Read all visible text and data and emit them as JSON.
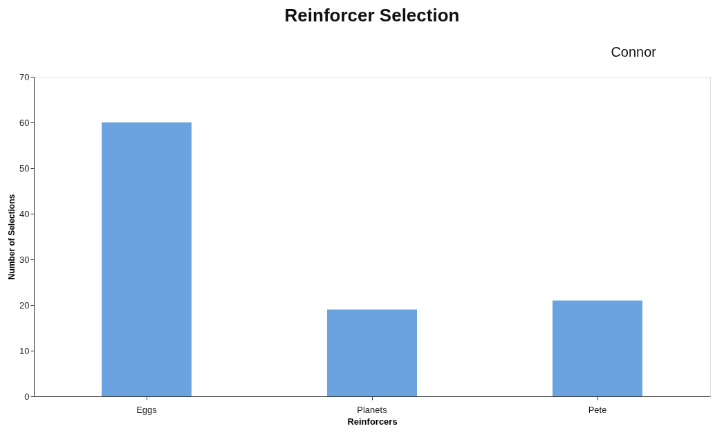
{
  "chart_data": {
    "type": "bar",
    "title": "Reinforcer Selection",
    "categories": [
      "Eggs",
      "Planets",
      "Pete"
    ],
    "values": [
      60,
      19,
      21
    ],
    "color": "#6aa3df",
    "xlabel": "Reinforcers",
    "ylabel": "Number of Selections",
    "ylim": [
      0,
      70
    ],
    "yticks": [
      0,
      10,
      20,
      30,
      40,
      50,
      60,
      70
    ],
    "grid": false,
    "annotations": [
      "Connor"
    ]
  }
}
